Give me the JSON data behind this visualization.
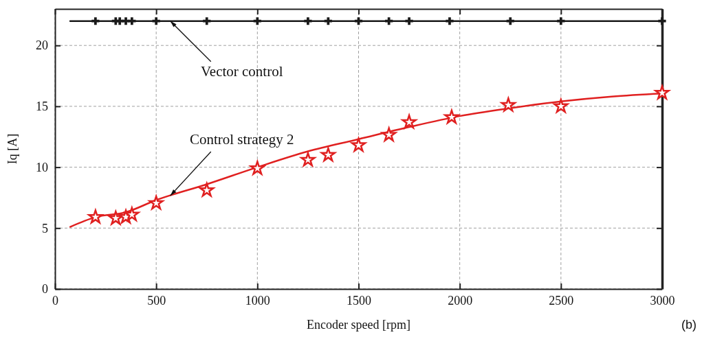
{
  "chart_data": {
    "type": "line",
    "xlabel": "Encoder speed [rpm]",
    "ylabel": "Iq [A]",
    "xlim": [
      0,
      3000
    ],
    "xticks": [
      0,
      500,
      1000,
      1500,
      2000,
      2500,
      3000
    ],
    "ylim": [
      0,
      23
    ],
    "yticks": [
      0,
      5,
      10,
      15,
      20
    ],
    "grid": true,
    "legend": false,
    "series": [
      {
        "name": "Vector control",
        "color": "#1a1a1a",
        "marker": "none",
        "x": [
          75,
          3000
        ],
        "values": [
          22,
          22
        ]
      },
      {
        "type": "scatter",
        "color": "#1a1a1a",
        "marker": "cross",
        "x": [
          200,
          300,
          320,
          350,
          380,
          500,
          750,
          1000,
          1250,
          1350,
          1500,
          1650,
          1750,
          1950,
          2250,
          2500,
          3000
        ],
        "values": [
          22,
          22,
          22,
          22,
          22,
          22,
          22,
          22,
          22,
          22,
          22,
          22,
          22,
          22,
          22,
          22,
          22
        ]
      },
      {
        "name": "Control strategy 2",
        "color": "#e02020",
        "marker": "none",
        "x": [
          75,
          200,
          350,
          500,
          750,
          1000,
          1250,
          1500,
          1750,
          2000,
          2250,
          2500,
          2750,
          3000
        ],
        "values": [
          5.1,
          5.9,
          6.3,
          7.3,
          8.6,
          10.0,
          11.3,
          12.3,
          13.3,
          14.2,
          14.85,
          15.4,
          15.8,
          16.05
        ]
      },
      {
        "type": "scatter",
        "color": "#e02020",
        "marker": "star",
        "x": [
          200,
          300,
          350,
          380,
          500,
          750,
          1000,
          1250,
          1350,
          1500,
          1650,
          1750,
          1960,
          2240,
          2500,
          3000
        ],
        "values": [
          5.9,
          5.8,
          5.9,
          6.1,
          7.05,
          8.1,
          9.9,
          10.6,
          11.0,
          11.8,
          12.65,
          13.7,
          14.1,
          15.1,
          15.0,
          16.1
        ]
      }
    ],
    "annotations": [
      "(b)"
    ]
  }
}
